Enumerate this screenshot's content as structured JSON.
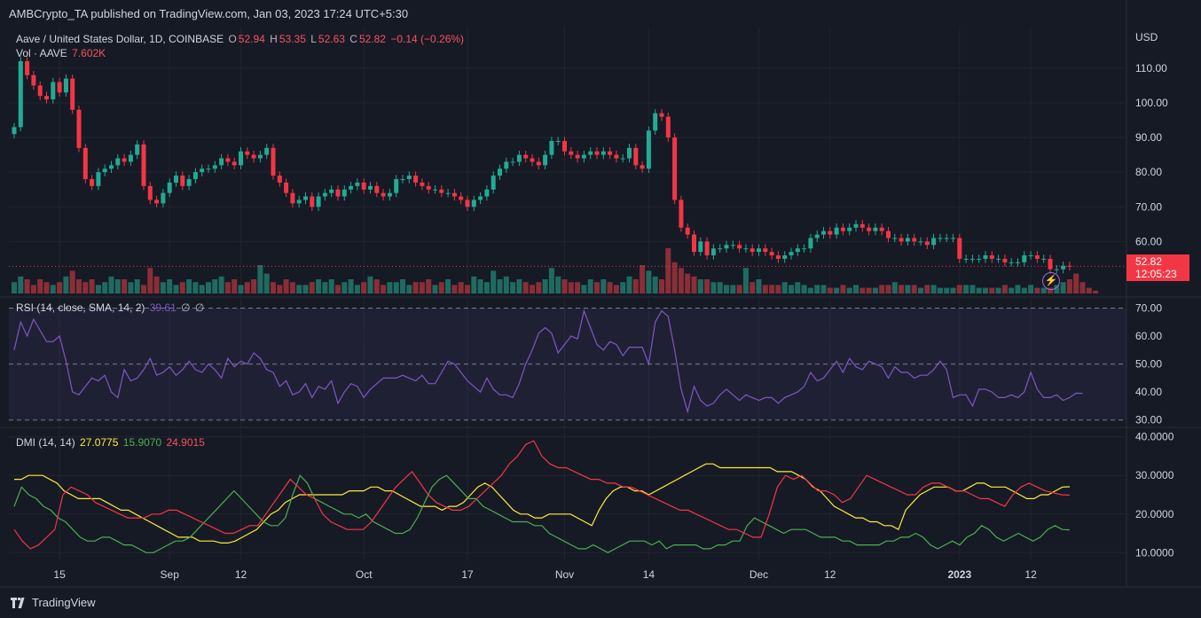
{
  "header": {
    "publisher": "AMBCrypto_TA published on TradingView.com, Jan 03, 2023 17:24 UTC+5:30"
  },
  "symbol": {
    "title": "Aave / United States Dollar, 1D, COINBASE",
    "o_label": "O",
    "o": "52.94",
    "h_label": "H",
    "h": "53.35",
    "l_label": "L",
    "l": "52.63",
    "c_label": "C",
    "c": "52.82",
    "change": "−0.14 (−0.26%)",
    "vol_label": "Vol · AAVE",
    "vol": "7.602K"
  },
  "currency": "USD",
  "last_price": {
    "value": "52.82",
    "countdown": "12:05:23"
  },
  "rsi_legend": {
    "label": "RSI (14, close, SMA, 14, 2)",
    "value": "39.61",
    "na1": "∅",
    "na2": "∅"
  },
  "dmi_legend": {
    "label": "DMI (14, 14)",
    "adx": "27.0775",
    "plus_di": "15.9070",
    "minus_di": "24.9015"
  },
  "footer": {
    "brand": "TradingView"
  },
  "colors": {
    "up": "#22ab94",
    "down": "#f23645",
    "rsi": "#7e57c2",
    "adx": "#ffeb3b",
    "plus_di": "#4caf50",
    "minus_di": "#f23645",
    "background": "#161a25"
  },
  "chart_data": [
    {
      "type": "candlestick",
      "panel": "price",
      "ylim": [
        45,
        122
      ],
      "yticks": [
        "110.00",
        "100.00",
        "90.00",
        "80.00",
        "70.00",
        "60.00"
      ],
      "ytick_values": [
        110,
        100,
        90,
        80,
        70,
        60
      ],
      "xticks": [
        "15",
        "Sep",
        "12",
        "Oct",
        "17",
        "Nov",
        "14",
        "Dec",
        "12",
        "2023",
        "12"
      ],
      "xtick_dates": [
        "2022-08-15",
        "2022-09-01",
        "2022-09-12",
        "2022-10-01",
        "2022-10-17",
        "2022-11-01",
        "2022-11-14",
        "2022-12-01",
        "2022-12-12",
        "2023-01-01",
        "2023-01-12"
      ],
      "start_date": "2022-08-08",
      "close": [
        93,
        112,
        108,
        105,
        102,
        101,
        106,
        103,
        107,
        98,
        87,
        78,
        76,
        80,
        81,
        82,
        84,
        83,
        85,
        88,
        76,
        72,
        71,
        74,
        77,
        79,
        76,
        78,
        80,
        81,
        81,
        82,
        84,
        83,
        82,
        86,
        85,
        84,
        85,
        87,
        79,
        77,
        74,
        71,
        72,
        73,
        70,
        73,
        74,
        75,
        73,
        75,
        76,
        77,
        75,
        76,
        74,
        73,
        74,
        78,
        78,
        79,
        77,
        76,
        75,
        75,
        74,
        74,
        73,
        72,
        70,
        72,
        73,
        75,
        79,
        81,
        83,
        83,
        85,
        84,
        83,
        82,
        85,
        89,
        89,
        86,
        85,
        84,
        85,
        86,
        85,
        86,
        85,
        84,
        84,
        87,
        82,
        81,
        92,
        97,
        96,
        90,
        72,
        64,
        62,
        57,
        60,
        56,
        58,
        58,
        59,
        59,
        58,
        58,
        57,
        58,
        57,
        56,
        55,
        56,
        57,
        58,
        58,
        61,
        62,
        63,
        62,
        64,
        63,
        64,
        65,
        64,
        63,
        64,
        63,
        61,
        61,
        60,
        61,
        60,
        60,
        59,
        61,
        61,
        61,
        61,
        55,
        55,
        55,
        55,
        56,
        55,
        55,
        54,
        54,
        54,
        56,
        56,
        55,
        55,
        52,
        52,
        53,
        52.82
      ],
      "volume_relative": [
        0.4,
        0.6,
        0.5,
        0.3,
        0.5,
        0.4,
        0.3,
        0.4,
        0.6,
        0.8,
        0.5,
        0.4,
        0.5,
        0.3,
        0.4,
        0.6,
        0.5,
        0.5,
        0.4,
        0.5,
        0.3,
        0.9,
        0.6,
        0.4,
        0.5,
        0.3,
        0.4,
        0.5,
        0.4,
        0.3,
        0.4,
        0.5,
        0.6,
        0.4,
        0.5,
        0.3,
        0.4,
        0.5,
        1.0,
        0.7,
        0.4,
        0.3,
        0.5,
        0.4,
        0.3,
        0.3,
        0.4,
        0.5,
        0.4,
        0.5,
        0.3,
        0.4,
        0.5,
        0.3,
        0.4,
        0.6,
        0.5,
        0.3,
        0.4,
        0.4,
        0.5,
        0.3,
        0.4,
        0.4,
        0.5,
        0.3,
        0.4,
        0.5,
        0.3,
        0.4,
        0.3,
        0.6,
        0.5,
        0.4,
        0.8,
        0.5,
        0.6,
        0.4,
        0.5,
        0.4,
        0.3,
        0.4,
        0.5,
        0.9,
        0.6,
        0.5,
        0.4,
        0.4,
        0.3,
        0.5,
        0.4,
        0.5,
        0.4,
        0.3,
        0.4,
        0.6,
        0.5,
        1.0,
        0.8,
        0.6,
        0.5,
        1.6,
        1.1,
        0.9,
        0.7,
        0.6,
        0.5,
        0.5,
        0.4,
        0.4,
        0.3,
        0.3,
        0.3,
        0.9,
        0.4,
        0.5,
        0.3,
        0.3,
        0.3,
        0.4,
        0.3,
        0.4,
        0.3,
        0.2,
        0.3,
        0.3,
        0.2,
        0.2,
        0.3,
        0.2,
        0.3,
        0.2,
        0.2,
        0.2,
        0.3,
        0.3,
        0.4,
        0.3,
        0.3,
        0.3,
        0.2,
        0.3,
        0.3,
        0.2,
        0.2,
        0.2,
        0.3,
        0.3,
        0.3,
        0.2,
        0.2,
        0.2,
        0.2,
        0.3,
        0.2,
        0.3,
        0.2,
        0.3,
        0.2,
        0.2,
        0.2,
        0.3,
        0.4,
        0.5,
        0.7,
        0.4,
        0.2,
        0.1
      ]
    },
    {
      "type": "line",
      "panel": "rsi",
      "series": [
        {
          "name": "RSI",
          "values": [
            55,
            65,
            60,
            66,
            62,
            58,
            58,
            60,
            51,
            40,
            39,
            42,
            45,
            44,
            46,
            40,
            38,
            48,
            44,
            45,
            48,
            52,
            46,
            47,
            49,
            46,
            48,
            51,
            48,
            47,
            50,
            48,
            45,
            52,
            49,
            51,
            50,
            54,
            52,
            48,
            47,
            42,
            44,
            39,
            40,
            43,
            38,
            42,
            41,
            44,
            36,
            40,
            43,
            42,
            38,
            41,
            43,
            45,
            45,
            45,
            46,
            45,
            44,
            46,
            43,
            43,
            47,
            51,
            50,
            47,
            44,
            42,
            40,
            45,
            41,
            39,
            39,
            38,
            43,
            50,
            55,
            61,
            63,
            61,
            54,
            57,
            60,
            59,
            69,
            63,
            57,
            55,
            58,
            57,
            53,
            56,
            56,
            56,
            50,
            65,
            69,
            67,
            55,
            41,
            33,
            42,
            37,
            35,
            36,
            39,
            41,
            39,
            37,
            39,
            38,
            37,
            38,
            38,
            36,
            38,
            39,
            40,
            42,
            47,
            44,
            45,
            48,
            51,
            47,
            52,
            49,
            48,
            51,
            50,
            49,
            45,
            49,
            47,
            47,
            45,
            46,
            46,
            48,
            51,
            48,
            38,
            39,
            39,
            35,
            41,
            41,
            40,
            38,
            38,
            39,
            38,
            40,
            47,
            41,
            38,
            38,
            39,
            37,
            38,
            39.61,
            39.5
          ]
        }
      ],
      "ylim": [
        28,
        73
      ],
      "yticks": [
        "70.00",
        "60.00",
        "50.00",
        "40.00",
        "30.00"
      ],
      "ytick_values": [
        70,
        60,
        50,
        40,
        30
      ],
      "band": [
        30,
        70
      ]
    },
    {
      "type": "line",
      "panel": "dmi",
      "series": [
        {
          "name": "ADX",
          "values": [
            29,
            29,
            30,
            30,
            30,
            29,
            28,
            26,
            25,
            24,
            24,
            24,
            24,
            23,
            22,
            21,
            21,
            20,
            19,
            18,
            17,
            16,
            15,
            14,
            14,
            14,
            13,
            13,
            13,
            12.5,
            12.5,
            13,
            14,
            15,
            16,
            18,
            20,
            21,
            23,
            24,
            25,
            25,
            25,
            25,
            25,
            25,
            25,
            26,
            26,
            26,
            27,
            27,
            26,
            26,
            25,
            24,
            23,
            22,
            22,
            22,
            21,
            22,
            22,
            23,
            25,
            27,
            28,
            27,
            25,
            23,
            21,
            20,
            20,
            19,
            19,
            20,
            20,
            20,
            20,
            19,
            18,
            17,
            21,
            24,
            26,
            27,
            27,
            26,
            26,
            25,
            26,
            27,
            28,
            29,
            30,
            31,
            32,
            33,
            33,
            32,
            32,
            32,
            32,
            32,
            32,
            32,
            32,
            31,
            31,
            31,
            30,
            29,
            27,
            26,
            24,
            22,
            21,
            20,
            19,
            19,
            18,
            18,
            17,
            17,
            16,
            21,
            23,
            25,
            26,
            27,
            27,
            27,
            26,
            26,
            27,
            28,
            28,
            27,
            27,
            27,
            26,
            25,
            24,
            24,
            25,
            25,
            26,
            27,
            27.0775
          ]
        },
        {
          "name": "+DI",
          "values": [
            22,
            27,
            25,
            24,
            22,
            21,
            19,
            18,
            16,
            14,
            13,
            13,
            14,
            14,
            13,
            12,
            12,
            11,
            10,
            10,
            11,
            12,
            13,
            13,
            14,
            16,
            18,
            20,
            22,
            24,
            26,
            24,
            22,
            20,
            18,
            17,
            17,
            19,
            25,
            30,
            28,
            24,
            23,
            22,
            21,
            20,
            20,
            19,
            20,
            18,
            17,
            16,
            15,
            15,
            16,
            19,
            23,
            27,
            29,
            30,
            28,
            26,
            24,
            24,
            22,
            21,
            20,
            19,
            18,
            18,
            18,
            17,
            17,
            15,
            14,
            13,
            12,
            11,
            11,
            12,
            11,
            10,
            11,
            12,
            13,
            13,
            13,
            12,
            13,
            11,
            12,
            12,
            12,
            12,
            11,
            11,
            12,
            12,
            13,
            13,
            17,
            19,
            18,
            17,
            16,
            15,
            16,
            16,
            16,
            15,
            14,
            14,
            14,
            13,
            13,
            12,
            12,
            12,
            12,
            13,
            13,
            14,
            14,
            15,
            14,
            12,
            11,
            12,
            13,
            12,
            14,
            15,
            17,
            16,
            14,
            13,
            14,
            15,
            14,
            13,
            14,
            16,
            17,
            16,
            15.907
          ]
        },
        {
          "name": "−DI",
          "values": [
            16,
            13,
            11,
            12,
            14,
            16,
            25,
            27,
            26,
            25,
            23,
            22,
            21,
            20,
            19,
            19,
            19,
            20,
            20,
            21,
            21,
            20,
            19,
            18,
            17,
            16,
            15,
            15,
            16,
            17,
            17,
            20,
            23,
            26,
            29,
            27,
            25,
            24,
            20,
            18,
            17,
            16,
            16,
            16,
            18,
            21,
            24,
            27,
            29,
            31,
            28,
            25,
            23,
            22,
            21,
            21,
            22,
            24,
            26,
            28,
            30,
            33,
            35,
            38,
            39,
            35,
            33,
            32,
            32,
            31,
            30,
            29,
            29,
            28,
            28,
            27,
            27,
            26,
            25,
            24,
            23,
            22,
            21,
            21,
            20,
            19,
            18,
            17,
            16,
            16,
            15,
            14,
            14,
            20,
            27,
            30,
            29,
            30,
            28,
            26,
            26,
            25,
            23,
            24,
            27,
            30,
            29,
            28,
            27,
            26,
            25,
            25,
            27,
            28,
            28,
            27,
            26,
            26,
            25,
            24,
            24,
            23,
            22,
            25,
            27,
            28,
            27,
            26,
            25.5,
            25,
            24.9015
          ]
        }
      ],
      "ylim": [
        8,
        42
      ],
      "yticks": [
        "40.0000",
        "30.0000",
        "20.0000",
        "10.0000"
      ],
      "ytick_values": [
        40,
        30,
        20,
        10
      ]
    }
  ]
}
